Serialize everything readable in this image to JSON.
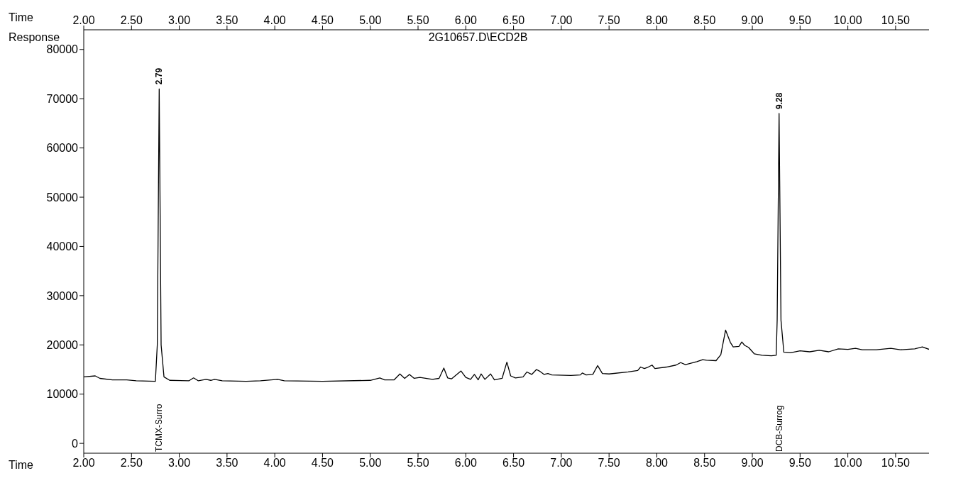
{
  "chart_data": {
    "type": "line",
    "title": "2G10657.D\\ECD2B",
    "xlabel": "Time",
    "ylabel": "Response",
    "x2label": "Time",
    "x": [
      2.0,
      2.12,
      2.17,
      2.3,
      2.45,
      2.55,
      2.75,
      2.77,
      2.79,
      2.81,
      2.84,
      2.9,
      3.1,
      3.15,
      3.2,
      3.28,
      3.33,
      3.37,
      3.45,
      3.7,
      3.85,
      4.03,
      4.1,
      4.5,
      5.0,
      5.1,
      5.15,
      5.25,
      5.31,
      5.36,
      5.41,
      5.46,
      5.52,
      5.65,
      5.72,
      5.77,
      5.81,
      5.85,
      5.95,
      6.0,
      6.05,
      6.09,
      6.13,
      6.16,
      6.2,
      6.26,
      6.3,
      6.38,
      6.43,
      6.47,
      6.52,
      6.6,
      6.64,
      6.69,
      6.74,
      6.77,
      6.82,
      6.86,
      6.9,
      7.1,
      7.2,
      7.22,
      7.26,
      7.33,
      7.38,
      7.43,
      7.5,
      7.7,
      7.8,
      7.83,
      7.87,
      7.9,
      7.95,
      7.98,
      8.1,
      8.2,
      8.25,
      8.3,
      8.42,
      8.48,
      8.52,
      8.62,
      8.67,
      8.72,
      8.77,
      8.8,
      8.86,
      8.89,
      8.92,
      8.96,
      9.02,
      9.1,
      9.2,
      9.25,
      9.26,
      9.28,
      9.3,
      9.33,
      9.4,
      9.5,
      9.6,
      9.7,
      9.8,
      9.9,
      10.0,
      10.08,
      10.15,
      10.3,
      10.45,
      10.55,
      10.7,
      10.78,
      10.85
    ],
    "series": [
      {
        "color": "#000000",
        "values": [
          13500,
          13700,
          13200,
          12900,
          12900,
          12700,
          12600,
          20000,
          72000,
          20000,
          13500,
          12800,
          12700,
          13300,
          12700,
          13000,
          12800,
          13000,
          12700,
          12600,
          12700,
          13000,
          12700,
          12600,
          12800,
          13300,
          12900,
          12900,
          14100,
          13200,
          14000,
          13200,
          13400,
          13000,
          13200,
          15300,
          13300,
          13100,
          14700,
          13400,
          13000,
          14000,
          12900,
          14100,
          13000,
          14100,
          12900,
          13200,
          16500,
          13700,
          13300,
          13500,
          14500,
          14000,
          15000,
          14700,
          14000,
          14200,
          13900,
          13800,
          13900,
          14300,
          13900,
          14000,
          15800,
          14200,
          14100,
          14500,
          14800,
          15500,
          15200,
          15400,
          15900,
          15200,
          15500,
          15900,
          16400,
          16000,
          16600,
          17000,
          16900,
          16800,
          18000,
          23000,
          20500,
          19600,
          19700,
          20600,
          19900,
          19500,
          18200,
          17900,
          17800,
          17900,
          25000,
          67000,
          25000,
          18500,
          18400,
          18800,
          18600,
          18900,
          18600,
          19200,
          19100,
          19300,
          19000,
          19000,
          19300,
          19000,
          19200,
          19600,
          19100
        ]
      }
    ],
    "xlim": [
      2.0,
      10.85
    ],
    "xticks": [
      {
        "value": 2,
        "label": "2.00"
      },
      {
        "value": 2.5,
        "label": "2.50"
      },
      {
        "value": 3,
        "label": "3.00"
      },
      {
        "value": 3.5,
        "label": "3.50"
      },
      {
        "value": 4,
        "label": "4.00"
      },
      {
        "value": 4.5,
        "label": "4.50"
      },
      {
        "value": 5,
        "label": "5.00"
      },
      {
        "value": 5.5,
        "label": "5.50"
      },
      {
        "value": 6,
        "label": "6.00"
      },
      {
        "value": 6.5,
        "label": "6.50"
      },
      {
        "value": 7,
        "label": "7.00"
      },
      {
        "value": 7.5,
        "label": "7.50"
      },
      {
        "value": 8,
        "label": "8.00"
      },
      {
        "value": 8.5,
        "label": "8.50"
      },
      {
        "value": 9,
        "label": "9.00"
      },
      {
        "value": 9.5,
        "label": "9.50"
      },
      {
        "value": 10,
        "label": "10.00"
      },
      {
        "value": 10.5,
        "label": "10.50"
      }
    ],
    "x2lim": [
      2.0,
      10.85
    ],
    "x2ticks": [
      {
        "value": 2,
        "label": "2.00"
      },
      {
        "value": 2.5,
        "label": "2.50"
      },
      {
        "value": 3,
        "label": "3.00"
      },
      {
        "value": 3.5,
        "label": "3.50"
      },
      {
        "value": 4,
        "label": "4.00"
      },
      {
        "value": 4.5,
        "label": "4.50"
      },
      {
        "value": 5,
        "label": "5.00"
      },
      {
        "value": 5.5,
        "label": "5.50"
      },
      {
        "value": 6,
        "label": "6.00"
      },
      {
        "value": 6.5,
        "label": "6.50"
      },
      {
        "value": 7,
        "label": "7.00"
      },
      {
        "value": 7.5,
        "label": "7.50"
      },
      {
        "value": 8,
        "label": "8.00"
      },
      {
        "value": 8.5,
        "label": "8.50"
      },
      {
        "value": 9,
        "label": "9.00"
      },
      {
        "value": 9.5,
        "label": "9.50"
      },
      {
        "value": 10,
        "label": "10.00"
      },
      {
        "value": 10.5,
        "label": "10.50"
      }
    ],
    "ylim": [
      -2000,
      84000
    ],
    "yticks": [
      0,
      10000,
      20000,
      30000,
      40000,
      50000,
      60000,
      70000,
      80000
    ],
    "annotations": [
      {
        "text": "2.79",
        "x": 2.79,
        "y": 72000
      },
      {
        "text": "9.28",
        "x": 9.28,
        "y": 67000
      },
      "TCMX-Surro",
      "DCB-Surrog"
    ],
    "marker": "none",
    "line_style": "solid"
  }
}
